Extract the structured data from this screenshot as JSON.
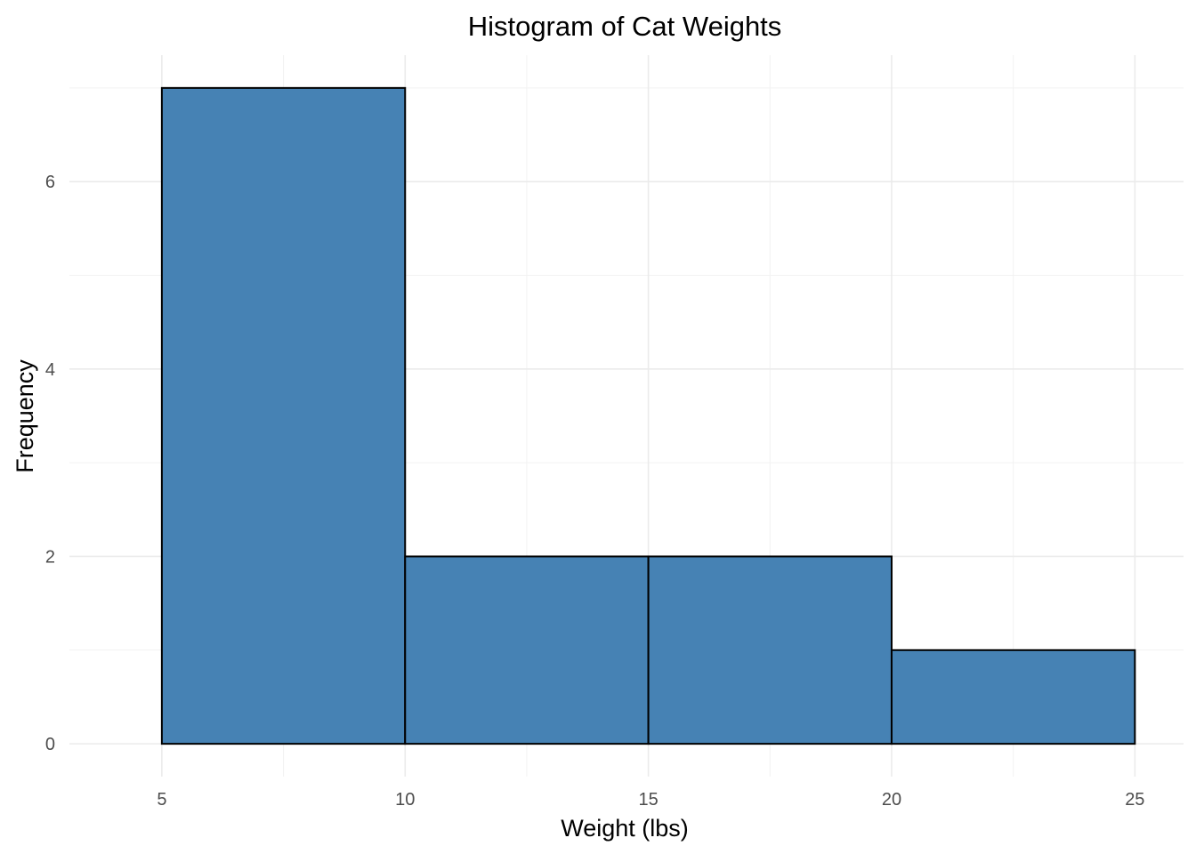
{
  "chart_data": {
    "type": "bar",
    "subtype": "histogram",
    "title": "Histogram of Cat Weights",
    "xlabel": "Weight (lbs)",
    "ylabel": "Frequency",
    "bins": [
      {
        "start": 5,
        "end": 10,
        "count": 7
      },
      {
        "start": 10,
        "end": 15,
        "count": 2
      },
      {
        "start": 15,
        "end": 20,
        "count": 2
      },
      {
        "start": 20,
        "end": 25,
        "count": 1
      }
    ],
    "xlim": [
      3.1,
      26.0
    ],
    "ylim": [
      -0.35,
      7.35
    ],
    "x_major_ticks": [
      5,
      10,
      15,
      20,
      25
    ],
    "x_tick_labels": [
      "5",
      "10",
      "15",
      "20",
      "25"
    ],
    "x_minor_ticks": [
      7.5,
      12.5,
      17.5,
      22.5
    ],
    "y_major_ticks": [
      0,
      2,
      4,
      6
    ],
    "y_tick_labels": [
      "0",
      "2",
      "4",
      "6"
    ],
    "y_minor_ticks": [
      1,
      3,
      5,
      7
    ],
    "grid": true,
    "legend": "none",
    "colors": {
      "bar_fill": "#4682B4",
      "bar_outline": "#000000",
      "grid_major": "#EBEBEB",
      "grid_minor": "#F2F2F2",
      "tick_text": "#4D4D4D"
    }
  }
}
